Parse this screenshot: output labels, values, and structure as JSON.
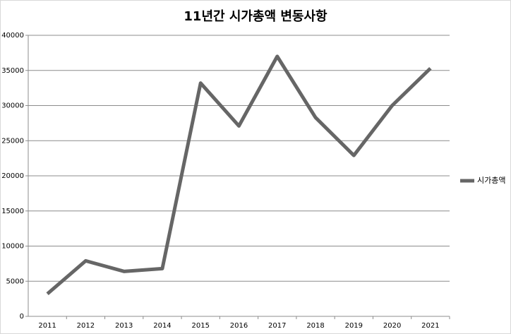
{
  "chart_data": {
    "type": "line",
    "title": "11년간 시가총액 변동사항",
    "categories": [
      "2011",
      "2012",
      "2013",
      "2014",
      "2015",
      "2016",
      "2017",
      "2018",
      "2019",
      "2020",
      "2021"
    ],
    "series": [
      {
        "name": "시가총액",
        "color": "#666666",
        "values": [
          3200,
          7900,
          6400,
          6800,
          33200,
          27100,
          37000,
          28300,
          22900,
          30000,
          35300
        ]
      }
    ],
    "ylim": [
      0,
      40000
    ],
    "yticks": [
      0,
      5000,
      10000,
      15000,
      20000,
      25000,
      30000,
      35000,
      40000
    ],
    "grid": true,
    "legend": "right"
  }
}
